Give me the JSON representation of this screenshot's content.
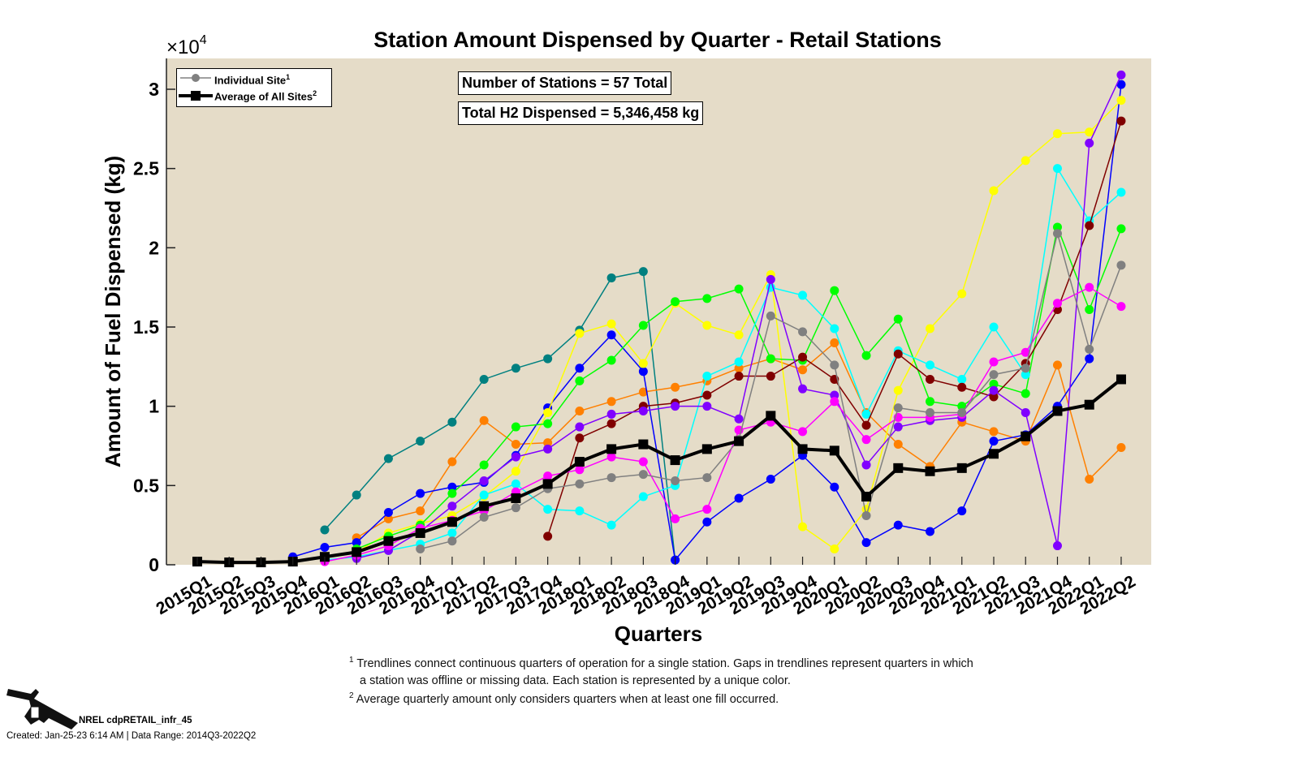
{
  "chart_data": {
    "type": "line",
    "title": "Station Amount Dispensed by Quarter - Retail Stations",
    "xlabel": "Quarters",
    "ylabel": "Amount of Fuel Dispensed (kg)",
    "y_multiplier": "×10^4",
    "ylim": [
      0,
      30000
    ],
    "yticks": [
      0,
      5000,
      10000,
      15000,
      20000,
      25000,
      30000
    ],
    "ytick_labels": [
      "0",
      "0.5",
      "1",
      "1.5",
      "2",
      "2.5",
      "3"
    ],
    "background": "#e5dcc8",
    "legend_position": "top-left",
    "categories": [
      "2015Q1",
      "2015Q2",
      "2015Q3",
      "2015Q4",
      "2016Q1",
      "2016Q2",
      "2016Q3",
      "2016Q4",
      "2017Q1",
      "2017Q2",
      "2017Q3",
      "2017Q4",
      "2018Q1",
      "2018Q2",
      "2018Q3",
      "2018Q4",
      "2019Q1",
      "2019Q2",
      "2019Q3",
      "2019Q4",
      "2020Q1",
      "2020Q2",
      "2020Q3",
      "2020Q4",
      "2021Q1",
      "2021Q2",
      "2021Q3",
      "2021Q4",
      "2022Q1",
      "2022Q2"
    ],
    "legend": [
      {
        "label": "Individual Site",
        "sup": "1",
        "color": "#808080"
      },
      {
        "label": "Average of All Sites",
        "sup": "2",
        "color": "#000000"
      }
    ],
    "average": {
      "name": "Average of All Sites",
      "color": "#000000",
      "values": [
        200,
        150,
        150,
        200,
        500,
        800,
        1500,
        2000,
        2700,
        3700,
        4200,
        5100,
        6500,
        7300,
        7600,
        6600,
        7300,
        7800,
        9400,
        7300,
        7200,
        4300,
        6100,
        5900,
        6100,
        7000,
        8100,
        9700,
        10100,
        11700
      ]
    },
    "sites": [
      {
        "color": "#008080",
        "values": [
          null,
          null,
          null,
          null,
          2200,
          4400,
          6700,
          7800,
          9000,
          11700,
          12400,
          13000,
          14800,
          18100,
          18500,
          300,
          null,
          null,
          null,
          null,
          null,
          null,
          null,
          null,
          null,
          null,
          null,
          null,
          null,
          null
        ]
      },
      {
        "color": "#ff8000",
        "values": [
          null,
          null,
          null,
          null,
          null,
          1700,
          2900,
          3400,
          6500,
          9100,
          7600,
          7700,
          9700,
          10300,
          10900,
          11200,
          11600,
          12400,
          13000,
          12300,
          14000,
          9600,
          7600,
          6200,
          9000,
          8400,
          7800,
          12600,
          5400,
          7400
        ]
      },
      {
        "color": "#0000ff",
        "values": [
          null,
          null,
          null,
          500,
          1100,
          1400,
          3300,
          4500,
          4900,
          5200,
          6900,
          9900,
          12400,
          14500,
          12200,
          300,
          2700,
          4200,
          5400,
          6900,
          4900,
          1400,
          2500,
          2100,
          3400,
          7800,
          8200,
          10000,
          13000,
          30300
        ]
      },
      {
        "color": "#ffff00",
        "values": [
          null,
          null,
          null,
          null,
          null,
          800,
          2000,
          2600,
          3100,
          4300,
          5900,
          9600,
          14600,
          15200,
          12700,
          16500,
          15100,
          14500,
          18300,
          2400,
          1000,
          3500,
          11000,
          14900,
          17100,
          23600,
          25500,
          27200,
          27300,
          29300
        ]
      },
      {
        "color": "#00ff00",
        "values": [
          null,
          null,
          null,
          null,
          null,
          1000,
          1800,
          2500,
          4500,
          6300,
          8700,
          8900,
          11600,
          12900,
          15100,
          16600,
          16800,
          17400,
          13000,
          12900,
          17300,
          13200,
          15500,
          10300,
          10000,
          11400,
          10800,
          21300,
          16100,
          21200
        ]
      },
      {
        "color": "#00ffff",
        "values": [
          null,
          null,
          null,
          null,
          300,
          500,
          900,
          1300,
          2000,
          4400,
          5100,
          3500,
          3400,
          2500,
          4300,
          5000,
          11900,
          12800,
          17500,
          17000,
          14900,
          9500,
          13500,
          12600,
          11700,
          15000,
          12000,
          25000,
          21700,
          23500
        ]
      },
      {
        "color": "#800000",
        "values": [
          null,
          null,
          null,
          null,
          null,
          null,
          null,
          null,
          null,
          null,
          null,
          1800,
          8000,
          8900,
          10000,
          10200,
          10700,
          11900,
          11900,
          13100,
          11700,
          8800,
          13300,
          11700,
          11200,
          10600,
          12700,
          16100,
          21400,
          28000
        ]
      },
      {
        "color": "#8000ff",
        "values": [
          null,
          null,
          null,
          null,
          null,
          400,
          900,
          2100,
          3700,
          5300,
          6800,
          7300,
          8700,
          9500,
          9700,
          10000,
          10000,
          9200,
          18000,
          11100,
          10700,
          6300,
          8700,
          9100,
          9300,
          11000,
          9600,
          1200,
          26600,
          30900
        ]
      },
      {
        "color": "#ff00ff",
        "values": [
          null,
          null,
          null,
          null,
          200,
          600,
          1200,
          2300,
          2800,
          3400,
          4600,
          5600,
          6000,
          6800,
          6500,
          2900,
          3500,
          8500,
          9000,
          8400,
          10300,
          7900,
          9300,
          9300,
          9500,
          12800,
          13400,
          16500,
          17500,
          16300
        ]
      },
      {
        "color": "#808080",
        "values": [
          null,
          null,
          null,
          null,
          null,
          null,
          null,
          1000,
          1500,
          3000,
          3600,
          4800,
          5100,
          5500,
          5700,
          5300,
          5500,
          7900,
          15700,
          14700,
          12600,
          3100,
          9900,
          9600,
          9600,
          12000,
          12400,
          20900,
          13600,
          18900
        ]
      }
    ]
  },
  "stats": {
    "stations": "Number of Stations = 57 Total",
    "total": "Total H2 Dispensed = 5,346,458 kg"
  },
  "notes": {
    "n1_sup": "1",
    "n1_line1": "Trendlines connect continuous quarters of operation for a single station. Gaps in trendlines represent quarters in which",
    "n1_line2": "a station was offline or missing data. Each station is represented by a unique color.",
    "n2_sup": "2",
    "n2": "Average quarterly amount only considers quarters when at least one fill occurred."
  },
  "footer": {
    "id": "NREL cdpRETAIL_infr_45",
    "created": "Created: Jan-25-23  6:14 AM | Data Range: 2014Q3-2022Q2"
  }
}
